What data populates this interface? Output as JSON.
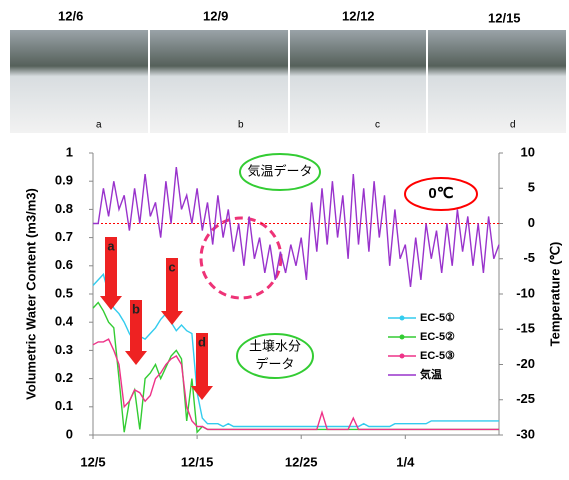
{
  "photos": [
    {
      "date": "12/6",
      "letter": "a"
    },
    {
      "date": "12/9",
      "letter": "b"
    },
    {
      "date": "12/12",
      "letter": "c"
    },
    {
      "date": "12/15",
      "letter": "d"
    }
  ],
  "chart_data": {
    "type": "line",
    "y_label": "Volumetric Water Content (m3/m3)",
    "y2_label": "Temperature (℃)",
    "xlim": [
      0,
      39
    ],
    "xticks": [
      {
        "value": 0,
        "label": "12/5"
      },
      {
        "value": 10,
        "label": "12/15"
      },
      {
        "value": 20,
        "label": "12/25"
      },
      {
        "value": 30,
        "label": "1/4"
      }
    ],
    "ylim": [
      0,
      1
    ],
    "yticks": [
      0,
      0.1,
      0.2,
      0.3,
      0.4,
      0.5,
      0.6,
      0.7,
      0.8,
      0.9,
      1
    ],
    "y2lim": [
      -30,
      10
    ],
    "y2ticks": [
      -30,
      -25,
      -20,
      -15,
      -10,
      -5,
      0,
      5,
      10
    ],
    "reference_line": {
      "value": 0,
      "axis": "y2",
      "color": "#ff0000"
    },
    "annotations": {
      "temperature": "気温データ",
      "zero": "0℃",
      "soil_line1": "土壌水分",
      "soil_line2": "データ",
      "arrows": [
        "a",
        "b",
        "c",
        "d"
      ]
    },
    "legend": "right",
    "x": [
      0,
      0.5,
      1,
      1.5,
      2,
      2.5,
      3,
      3.5,
      4,
      4.5,
      5,
      5.5,
      6,
      6.5,
      7,
      7.5,
      8,
      8.5,
      9,
      9.5,
      10,
      10.5,
      11,
      11.5,
      12,
      12.5,
      13,
      13.5,
      14,
      14.5,
      15,
      15.5,
      16,
      16.5,
      17,
      17.5,
      18,
      18.5,
      19,
      19.5,
      20,
      20.5,
      21,
      21.5,
      22,
      22.5,
      23,
      23.5,
      24,
      24.5,
      25,
      25.5,
      26,
      26.5,
      27,
      27.5,
      28,
      28.5,
      29,
      29.5,
      30,
      30.5,
      31,
      31.5,
      32,
      32.5,
      33,
      33.5,
      34,
      34.5,
      35,
      35.5,
      36,
      36.5,
      37,
      37.5,
      38,
      38.5,
      39
    ],
    "series": [
      {
        "name": "EC-5①",
        "color": "#33ccee",
        "values": [
          0.53,
          0.55,
          0.57,
          0.5,
          0.45,
          0.43,
          0.4,
          0.36,
          0.33,
          0.35,
          0.34,
          0.36,
          0.38,
          0.41,
          0.43,
          0.4,
          0.37,
          0.39,
          0.37,
          0.36,
          0.15,
          0.06,
          0.04,
          0.04,
          0.04,
          0.03,
          0.04,
          0.03,
          0.03,
          0.03,
          0.03,
          0.03,
          0.03,
          0.03,
          0.03,
          0.03,
          0.03,
          0.03,
          0.03,
          0.03,
          0.03,
          0.03,
          0.03,
          0.03,
          0.03,
          0.03,
          0.03,
          0.03,
          0.03,
          0.03,
          0.03,
          0.03,
          0.04,
          0.03,
          0.03,
          0.03,
          0.03,
          0.03,
          0.04,
          0.04,
          0.04,
          0.04,
          0.04,
          0.04,
          0.04,
          0.05,
          0.05,
          0.05,
          0.05,
          0.05,
          0.05,
          0.05,
          0.05,
          0.05,
          0.05,
          0.05,
          0.05,
          0.05,
          0.05
        ]
      },
      {
        "name": "EC-5②",
        "color": "#33cc33",
        "values": [
          0.45,
          0.47,
          0.44,
          0.4,
          0.38,
          0.2,
          0.01,
          0.12,
          0.16,
          0.02,
          0.2,
          0.22,
          0.25,
          0.2,
          0.24,
          0.28,
          0.3,
          0.27,
          0.05,
          0.2,
          0.01,
          0.03,
          0.02,
          0.02,
          0.02,
          0.02,
          0.02,
          0.02,
          0.02,
          0.02,
          0.02,
          0.02,
          0.02,
          0.02,
          0.02,
          0.02,
          0.02,
          0.02,
          0.02,
          0.02,
          0.02,
          0.02,
          0.02,
          0.02,
          0.02,
          0.02,
          0.02,
          0.02,
          0.02,
          0.02,
          0.02,
          0.02,
          0.02,
          0.02,
          0.02,
          0.02,
          0.02,
          0.02,
          0.02,
          0.02,
          0.02,
          0.02,
          0.02,
          0.02,
          0.02,
          0.02,
          0.02,
          0.02,
          0.02,
          0.02,
          0.02,
          0.02,
          0.02,
          0.02,
          0.02,
          0.02,
          0.02,
          0.02,
          0.02
        ]
      },
      {
        "name": "EC-5③",
        "color": "#ee3388",
        "values": [
          0.32,
          0.33,
          0.33,
          0.34,
          0.3,
          0.25,
          0.1,
          0.12,
          0.16,
          0.15,
          0.12,
          0.14,
          0.2,
          0.22,
          0.25,
          0.27,
          0.28,
          0.25,
          0.1,
          0.05,
          0.03,
          0.03,
          0.02,
          0.02,
          0.02,
          0.02,
          0.02,
          0.02,
          0.02,
          0.02,
          0.02,
          0.02,
          0.02,
          0.02,
          0.02,
          0.02,
          0.02,
          0.02,
          0.02,
          0.02,
          0.02,
          0.02,
          0.02,
          0.02,
          0.08,
          0.02,
          0.02,
          0.02,
          0.02,
          0.02,
          0.06,
          0.02,
          0.02,
          0.02,
          0.02,
          0.02,
          0.02,
          0.02,
          0.02,
          0.02,
          0.02,
          0.02,
          0.02,
          0.02,
          0.02,
          0.02,
          0.02,
          0.02,
          0.02,
          0.02,
          0.02,
          0.02,
          0.02,
          0.02,
          0.02,
          0.02,
          0.02,
          0.02,
          0.02
        ]
      },
      {
        "name": "気温",
        "color": "#9933cc",
        "axis": "y2",
        "values": [
          0,
          0,
          5,
          1,
          6,
          2,
          4,
          -1,
          5,
          0,
          7,
          1,
          3,
          -2,
          6,
          0,
          8,
          2,
          4,
          0,
          5,
          -1,
          3,
          -3,
          4,
          -2,
          2,
          -4,
          0,
          -6,
          1,
          -5,
          -2,
          -7,
          -3,
          -8,
          -4,
          -7,
          -3,
          -6,
          -2,
          -8,
          3,
          -4,
          5,
          -3,
          6,
          -2,
          4,
          -5,
          7,
          -3,
          5,
          -4,
          6,
          -2,
          4,
          -6,
          2,
          -5,
          -3,
          -9,
          -2,
          -8,
          0,
          -5,
          -1,
          -7,
          0,
          -6,
          2,
          -4,
          1,
          -6,
          0,
          -7,
          1,
          -5,
          -3
        ]
      }
    ]
  }
}
